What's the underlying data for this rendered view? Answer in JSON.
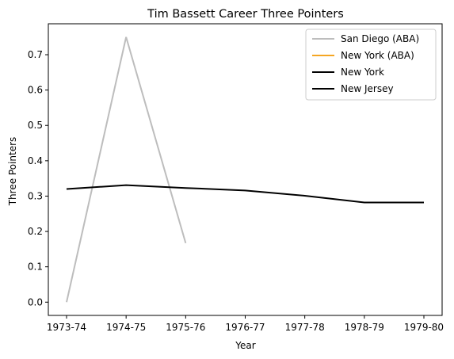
{
  "chart_data": {
    "type": "line",
    "title": "Tim Bassett Career Three Pointers",
    "xlabel": "Year",
    "ylabel": "Three Pointers",
    "categories": [
      "1973-74",
      "1974-75",
      "1975-76",
      "1976-77",
      "1977-78",
      "1978-79",
      "1979-80"
    ],
    "ylim": [
      -0.0375,
      0.7875
    ],
    "yticks": [
      "0.0",
      "0.1",
      "0.2",
      "0.3",
      "0.4",
      "0.5",
      "0.6",
      "0.7"
    ],
    "grid": false,
    "legend_position": "top-right",
    "series": [
      {
        "name": "San Diego (ABA)",
        "color": "#bdbdbd",
        "values": [
          0.0,
          0.75,
          0.167,
          null,
          null,
          null,
          null
        ]
      },
      {
        "name": "New York (ABA)",
        "color": "#f5a623",
        "values": [
          null,
          null,
          null,
          null,
          null,
          null,
          null
        ]
      },
      {
        "name": "New York",
        "color": "#000000",
        "values": [
          null,
          null,
          null,
          null,
          null,
          null,
          null
        ]
      },
      {
        "name": "New Jersey",
        "color": "#000000",
        "values": [
          0.32,
          0.331,
          0.323,
          0.316,
          0.301,
          0.282,
          0.282
        ]
      }
    ]
  }
}
